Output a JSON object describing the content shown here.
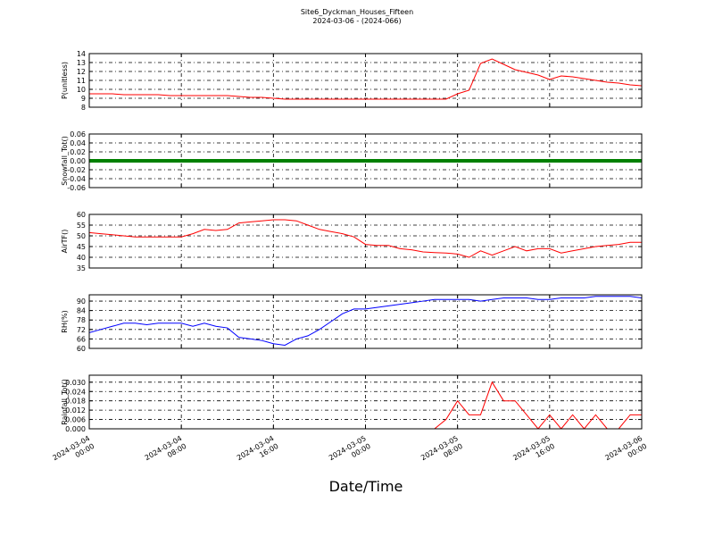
{
  "chart_data": {
    "type": "line",
    "title": "Site6_Dyckman_Houses_Fifteen",
    "subtitle": "2024-03-06 - (2024-066)",
    "xlabel": "Date/Time",
    "grid": true,
    "xlim": [
      "2024-03-04 00:00",
      "2024-03-06 00:00"
    ],
    "xticks": [
      {
        "value": "2024-03-04 00:00",
        "label": [
          "2024-03-04",
          "00:00"
        ]
      },
      {
        "value": "2024-03-04 08:00",
        "label": [
          "2024-03-04",
          "08:00"
        ]
      },
      {
        "value": "2024-03-04 16:00",
        "label": [
          "2024-03-04",
          "16:00"
        ]
      },
      {
        "value": "2024-03-05 00:00",
        "label": [
          "2024-03-05",
          "00:00"
        ]
      },
      {
        "value": "2024-03-05 08:00",
        "label": [
          "2024-03-05",
          "08:00"
        ]
      },
      {
        "value": "2024-03-05 16:00",
        "label": [
          "2024-03-05",
          "16:00"
        ]
      },
      {
        "value": "2024-03-06 00:00",
        "label": [
          "2024-03-06",
          "00:00"
        ]
      }
    ],
    "x": [
      "2024-03-04 00:00",
      "2024-03-04 01:00",
      "2024-03-04 02:00",
      "2024-03-04 03:00",
      "2024-03-04 04:00",
      "2024-03-04 05:00",
      "2024-03-04 06:00",
      "2024-03-04 07:00",
      "2024-03-04 08:00",
      "2024-03-04 09:00",
      "2024-03-04 10:00",
      "2024-03-04 11:00",
      "2024-03-04 12:00",
      "2024-03-04 13:00",
      "2024-03-04 14:00",
      "2024-03-04 15:00",
      "2024-03-04 16:00",
      "2024-03-04 17:00",
      "2024-03-04 18:00",
      "2024-03-04 19:00",
      "2024-03-04 20:00",
      "2024-03-04 21:00",
      "2024-03-04 22:00",
      "2024-03-04 23:00",
      "2024-03-05 00:00",
      "2024-03-05 01:00",
      "2024-03-05 02:00",
      "2024-03-05 03:00",
      "2024-03-05 04:00",
      "2024-03-05 05:00",
      "2024-03-05 06:00",
      "2024-03-05 07:00",
      "2024-03-05 08:00",
      "2024-03-05 09:00",
      "2024-03-05 10:00",
      "2024-03-05 11:00",
      "2024-03-05 12:00",
      "2024-03-05 13:00",
      "2024-03-05 14:00",
      "2024-03-05 15:00",
      "2024-03-05 16:00",
      "2024-03-05 17:00",
      "2024-03-05 18:00",
      "2024-03-05 19:00",
      "2024-03-05 20:00",
      "2024-03-05 21:00",
      "2024-03-05 22:00",
      "2024-03-05 23:00",
      "2024-03-06 00:00"
    ],
    "panels": [
      {
        "ylabel": "P(unitless)",
        "ylim": [
          8,
          14
        ],
        "yticks": [
          8,
          9,
          10,
          11,
          12,
          13,
          14
        ],
        "series": [
          {
            "color": "#ff0000",
            "width": 1,
            "values": [
              9.5,
              9.5,
              9.5,
              9.4,
              9.4,
              9.4,
              9.4,
              9.3,
              9.3,
              9.3,
              9.3,
              9.3,
              9.3,
              9.2,
              9.1,
              9.1,
              9.0,
              8.9,
              8.9,
              8.9,
              8.9,
              8.9,
              8.9,
              8.9,
              8.9,
              8.9,
              8.9,
              8.9,
              8.9,
              8.9,
              8.9,
              8.9,
              9.5,
              9.9,
              12.9,
              13.4,
              12.8,
              12.2,
              11.9,
              11.6,
              11.1,
              11.5,
              11.4,
              11.2,
              11.0,
              10.8,
              10.7,
              10.5,
              10.4
            ]
          }
        ]
      },
      {
        "ylabel": "Snowfall_Tot()",
        "ylim": [
          -0.06,
          0.06
        ],
        "yticks": [
          -0.06,
          -0.04,
          -0.02,
          {
            "value": 0,
            "label": "0.00"
          },
          0.02,
          0.04,
          0.06
        ],
        "series": [
          {
            "color": "#008000",
            "width": 4,
            "values": [
              0,
              0,
              0,
              0,
              0,
              0,
              0,
              0,
              0,
              0,
              0,
              0,
              0,
              0,
              0,
              0,
              0,
              0,
              0,
              0,
              0,
              0,
              0,
              0,
              0,
              0,
              0,
              0,
              0,
              0,
              0,
              0,
              0,
              0,
              0,
              0,
              0,
              0,
              0,
              0,
              0,
              0,
              0,
              0,
              0,
              0,
              0,
              0,
              0
            ]
          }
        ]
      },
      {
        "ylabel": "AirTF()",
        "ylim": [
          35,
          60
        ],
        "yticks": [
          35,
          40,
          45,
          50,
          55,
          60
        ],
        "series": [
          {
            "color": "#ff0000",
            "width": 1,
            "values": [
              51.5,
              51,
              50.5,
              50,
              49.5,
              49.5,
              49.5,
              49.5,
              49.5,
              51,
              53,
              52.5,
              53,
              56,
              56.5,
              57,
              57.5,
              57.5,
              57,
              55,
              53,
              52,
              51,
              49.5,
              46,
              45.5,
              45.5,
              44,
              43.5,
              42.5,
              42.2,
              42,
              41.5,
              40,
              43,
              41,
              43,
              45,
              43,
              44,
              44,
              42,
              43,
              44,
              45,
              45.5,
              46,
              47,
              47
            ]
          }
        ]
      },
      {
        "ylabel": "RH(%)",
        "ylim": [
          60,
          94
        ],
        "yticks": [
          60,
          66,
          72,
          78,
          84,
          90
        ],
        "series": [
          {
            "color": "#0000ff",
            "width": 1,
            "values": [
              70,
              72,
              74,
              76,
              76,
              75,
              76,
              76,
              76,
              74,
              76,
              74,
              73,
              67,
              66,
              65,
              63,
              62,
              66,
              68,
              72,
              77,
              82,
              85,
              85,
              86,
              87,
              88,
              89,
              90,
              91,
              91,
              91,
              91,
              90,
              91,
              92,
              92,
              92,
              91,
              91,
              92,
              92,
              92,
              93,
              93,
              93,
              93,
              92
            ]
          }
        ]
      },
      {
        "ylabel": "Rainfall_Tot()",
        "ylim": [
          0,
          0.0345
        ],
        "yticks": [
          {
            "value": 0,
            "label": "0.000"
          },
          0.006,
          0.012,
          0.018,
          0.024,
          {
            "value": 0.03,
            "label": "0.030"
          }
        ],
        "series": [
          {
            "color": "#ff0000",
            "width": 1,
            "values": [
              0,
              0,
              0,
              0,
              0,
              0,
              0,
              0,
              0,
              0,
              0,
              0,
              0,
              0,
              0,
              0,
              0,
              0,
              0,
              0,
              0,
              0,
              0,
              0,
              0,
              0,
              0,
              0,
              0,
              0,
              0,
              0.006,
              0.018,
              0.009,
              0.009,
              0.03,
              0.018,
              0.018,
              0.009,
              0,
              0.009,
              0,
              0.009,
              0,
              0.009,
              0,
              0,
              0.009,
              0.009
            ]
          }
        ]
      }
    ]
  }
}
